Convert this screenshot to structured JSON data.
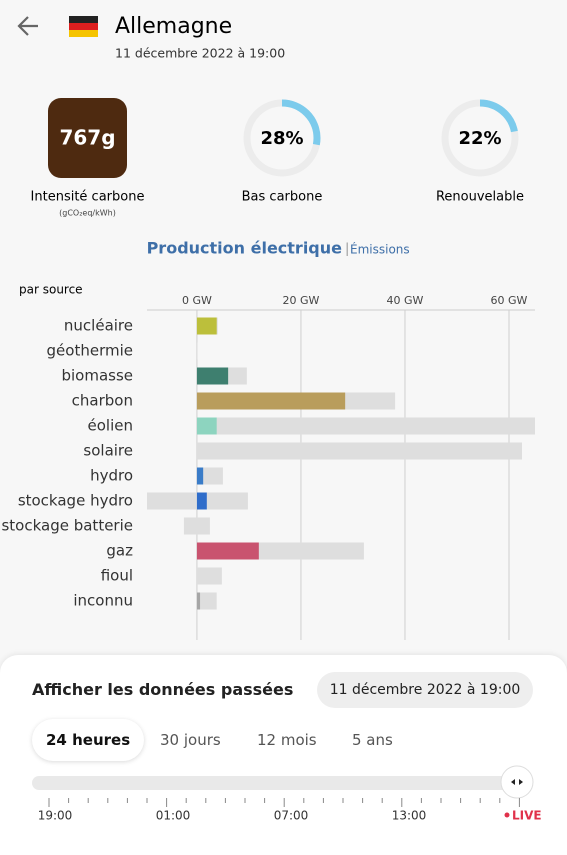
{
  "header": {
    "title": "Allemagne",
    "datetime": "11 décembre 2022 à 19:00"
  },
  "summary": {
    "carbon_intensity": {
      "value": 767,
      "value_label": "767g",
      "label": "Intensité carbone",
      "unit": "(gCO₂eq/kWh)",
      "color": "#4e2a10"
    },
    "low_carbon": {
      "value": 28,
      "value_label": "28%",
      "label": "Bas carbone"
    },
    "renewable": {
      "value": 22,
      "value_label": "22%",
      "label": "Renouvelable"
    },
    "gauge_color": "#7ccbec"
  },
  "chart_data": {
    "type": "bar",
    "orientation": "horizontal",
    "title": "Production électrique",
    "toggle": "Émissions",
    "subtitle": "par source",
    "categories": [
      "nucléaire",
      "géothermie",
      "biomasse",
      "charbon",
      "éolien",
      "solaire",
      "hydro",
      "stockage hydro",
      "stockage batterie",
      "gaz",
      "fioul",
      "inconnu"
    ],
    "production": [
      3.8,
      0,
      6.0,
      28.5,
      3.8,
      0,
      1.2,
      1.9,
      0,
      11.9,
      0,
      0.6
    ],
    "colors": [
      "#bcbf3b",
      "#b0b0b0",
      "#3e7f6f",
      "#b99d5c",
      "#8dd4bf",
      "#f2c94c",
      "#3a7cc8",
      "#2f6dca",
      "#7a5bc4",
      "#c9536f",
      "#8c6d4a",
      "#a6a6a6"
    ],
    "capacity_min": [
      0,
      0,
      0,
      0,
      0,
      0,
      0,
      -9.6,
      -2.5,
      0,
      0,
      0
    ],
    "capacity_max": [
      4.0,
      0.1,
      9.6,
      38.1,
      65,
      62.5,
      5.0,
      9.8,
      2.5,
      32.1,
      4.8,
      3.8
    ],
    "capacity_color": "#dedede",
    "xlim": [
      -9.6,
      65
    ],
    "xticks": [
      {
        "value": 0,
        "label": "0 GW"
      },
      {
        "value": 20,
        "label": "20 GW"
      },
      {
        "value": 40,
        "label": "40 GW"
      },
      {
        "value": 60,
        "label": "60 GW"
      }
    ],
    "grid": true
  },
  "history": {
    "title": "Afficher les données passées",
    "date_button": "11 décembre 2022 à 19:00",
    "tabs": [
      "24 heures",
      "30 jours",
      "12 mois",
      "5 ans"
    ],
    "timeline_labels": [
      "19:00",
      "01:00",
      "07:00",
      "13:00"
    ],
    "live": "LIVE"
  }
}
